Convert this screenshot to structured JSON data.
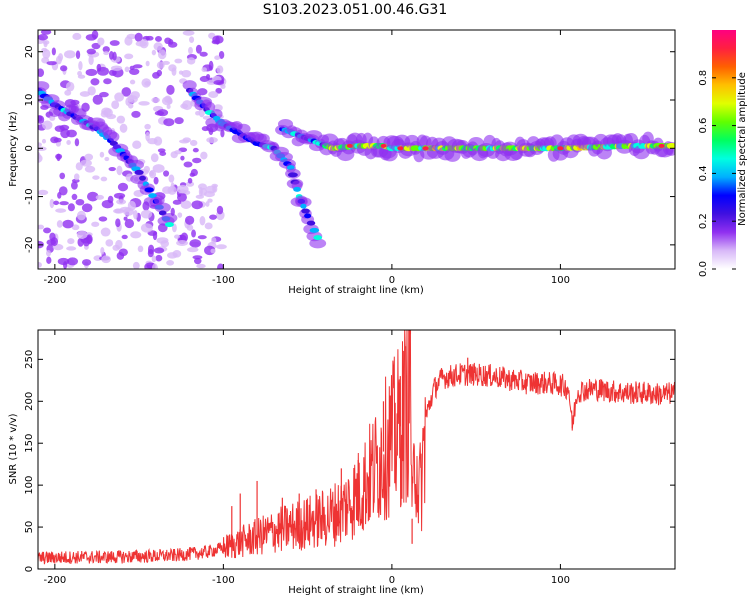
{
  "title": "S103.2023.051.00.46.G31",
  "chart_data": [
    {
      "type": "heatmap",
      "title": "S103.2023.051.00.46.G31",
      "xlabel": "Height of straight line (km)",
      "ylabel": "Frequency (Hz)",
      "xlim": [
        -210,
        168
      ],
      "ylim": [
        -25,
        24.5
      ],
      "xticks": [
        -200,
        -100,
        0,
        100
      ],
      "yticks": [
        -20,
        -10,
        0,
        10,
        20
      ],
      "grid": false,
      "colorbar": {
        "label": "Normalized spectral amplitude",
        "range": [
          0,
          1
        ],
        "ticks": [
          0.0,
          0.2,
          0.4,
          0.6,
          0.8
        ],
        "colors": [
          "#ffffff",
          "#d8b8f8",
          "#9030f0",
          "#4010e0",
          "#0000ff",
          "#00b0ff",
          "#00ffe0",
          "#00ff60",
          "#60ff00",
          "#e0ff00",
          "#ffc000",
          "#ff6000",
          "#ff2040",
          "#ff0080"
        ]
      },
      "features": [
        {
          "name": "",
          "points": [
            [
              -210,
              12
            ],
            [
              -200,
              9
            ],
            [
              -185,
              6
            ],
            [
              -175,
              4
            ],
            [
              -165,
              1
            ],
            [
              -150,
              -5
            ],
            [
              -140,
              -11
            ],
            [
              -130,
              -17
            ]
          ]
        },
        {
          "name": "",
          "points": [
            [
              -120,
              12
            ],
            [
              -110,
              8
            ],
            [
              -100,
              5
            ],
            [
              -90,
              3
            ],
            [
              -80,
              1
            ],
            [
              -70,
              0
            ],
            [
              -60,
              -4
            ],
            [
              -55,
              -10
            ],
            [
              -50,
              -14
            ],
            [
              -42,
              -20
            ]
          ]
        },
        {
          "name": "",
          "points": [
            [
              -65,
              4
            ],
            [
              -50,
              2
            ],
            [
              -35,
              0
            ],
            [
              -20,
              0.5
            ],
            [
              -5,
              0.5
            ],
            [
              0,
              0
            ],
            [
              20,
              0
            ],
            [
              60,
              0
            ],
            [
              100,
              0
            ],
            [
              140,
              0.5
            ],
            [
              168,
              0.5
            ]
          ]
        }
      ]
    },
    {
      "type": "line",
      "title": "",
      "xlabel": "Height of straight line (km)",
      "ylabel": "SNR (10 * v/v)",
      "xlim": [
        -210,
        168
      ],
      "ylim": [
        0,
        285
      ],
      "xticks": [
        -200,
        -100,
        0,
        100
      ],
      "yticks": [
        0,
        50,
        100,
        150,
        200,
        250
      ],
      "grid": false,
      "series": [
        {
          "name": "",
          "color": "#ee3333",
          "x": [
            -210,
            -190,
            -170,
            -150,
            -130,
            -110,
            -100,
            -90,
            -80,
            -70,
            -60,
            -50,
            -40,
            -30,
            -20,
            -15,
            -10,
            -5,
            0,
            5,
            8,
            10,
            11,
            12,
            14,
            16,
            18,
            20,
            25,
            30,
            40,
            50,
            60,
            70,
            80,
            90,
            100,
            105,
            107,
            110,
            120,
            130,
            140,
            150,
            160,
            168
          ],
          "values": [
            13,
            14,
            14,
            15,
            16,
            20,
            25,
            32,
            38,
            45,
            50,
            55,
            60,
            70,
            90,
            105,
            120,
            140,
            155,
            170,
            190,
            200,
            280,
            60,
            150,
            90,
            110,
            180,
            215,
            228,
            232,
            232,
            230,
            226,
            222,
            222,
            220,
            215,
            170,
            212,
            215,
            212,
            210,
            210,
            208,
            210
          ],
          "spikes": [
            [
              -80,
              105
            ],
            [
              -90,
              90
            ],
            [
              -95,
              75
            ],
            [
              -65,
              85
            ],
            [
              -55,
              90
            ],
            [
              -45,
              95
            ],
            [
              -30,
              120
            ],
            [
              -20,
              130
            ],
            [
              -5,
              200
            ],
            [
              5,
              230
            ],
            [
              11,
              285
            ],
            [
              12,
              30
            ],
            [
              45,
              252
            ],
            [
              107,
              168
            ]
          ]
        }
      ]
    }
  ]
}
